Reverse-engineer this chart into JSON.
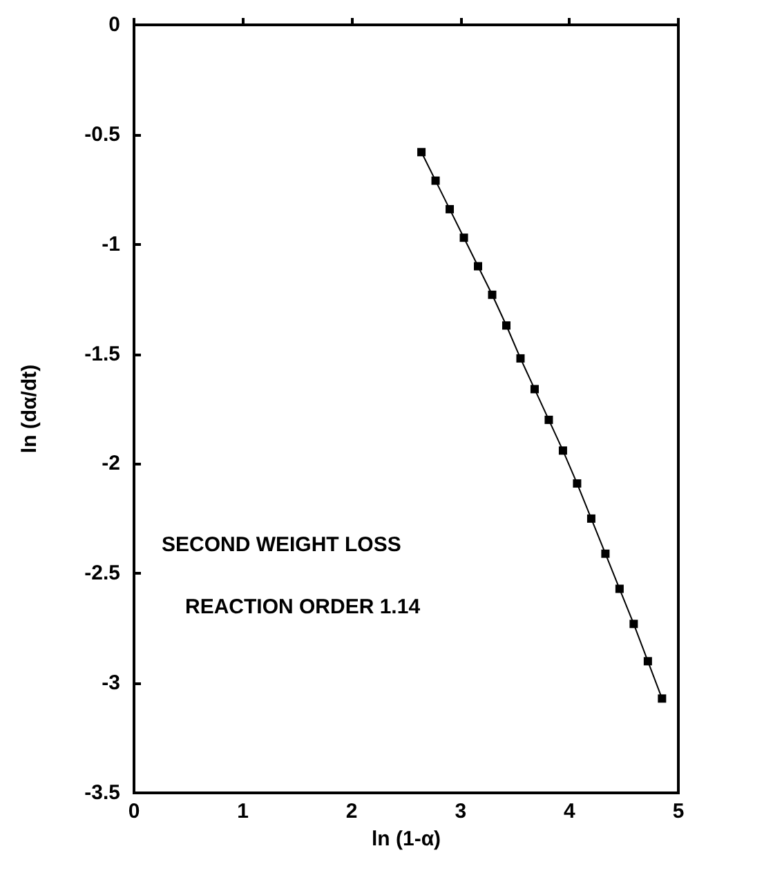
{
  "chart_data": {
    "type": "line",
    "xlabel": "ln (1-α)",
    "ylabel": "ln (dα/dt)",
    "annotations": [
      "SECOND WEIGHT LOSS",
      "REACTION ORDER 1.14"
    ],
    "x": [
      2.64,
      2.77,
      2.9,
      3.03,
      3.16,
      3.29,
      3.42,
      3.55,
      3.68,
      3.81,
      3.94,
      4.07,
      4.2,
      4.33,
      4.46,
      4.59,
      4.72,
      4.85
    ],
    "series": [
      {
        "color": "#000000",
        "values": [
          -0.58,
          -0.71,
          -0.84,
          -0.97,
          -1.1,
          -1.23,
          -1.37,
          -1.52,
          -1.66,
          -1.8,
          -1.94,
          -2.09,
          -2.25,
          -2.41,
          -2.57,
          -2.73,
          -2.9,
          -3.07
        ]
      }
    ],
    "xlim": [
      0,
      5
    ],
    "xticks": [
      0,
      1,
      2,
      3,
      4,
      5
    ],
    "ylim": [
      -3.5,
      0
    ],
    "yticks": [
      -3.5,
      -3,
      -2.5,
      -2,
      -1.5,
      -1,
      -0.5,
      0
    ],
    "marker": "square",
    "line_style": "solid",
    "grid": false
  }
}
